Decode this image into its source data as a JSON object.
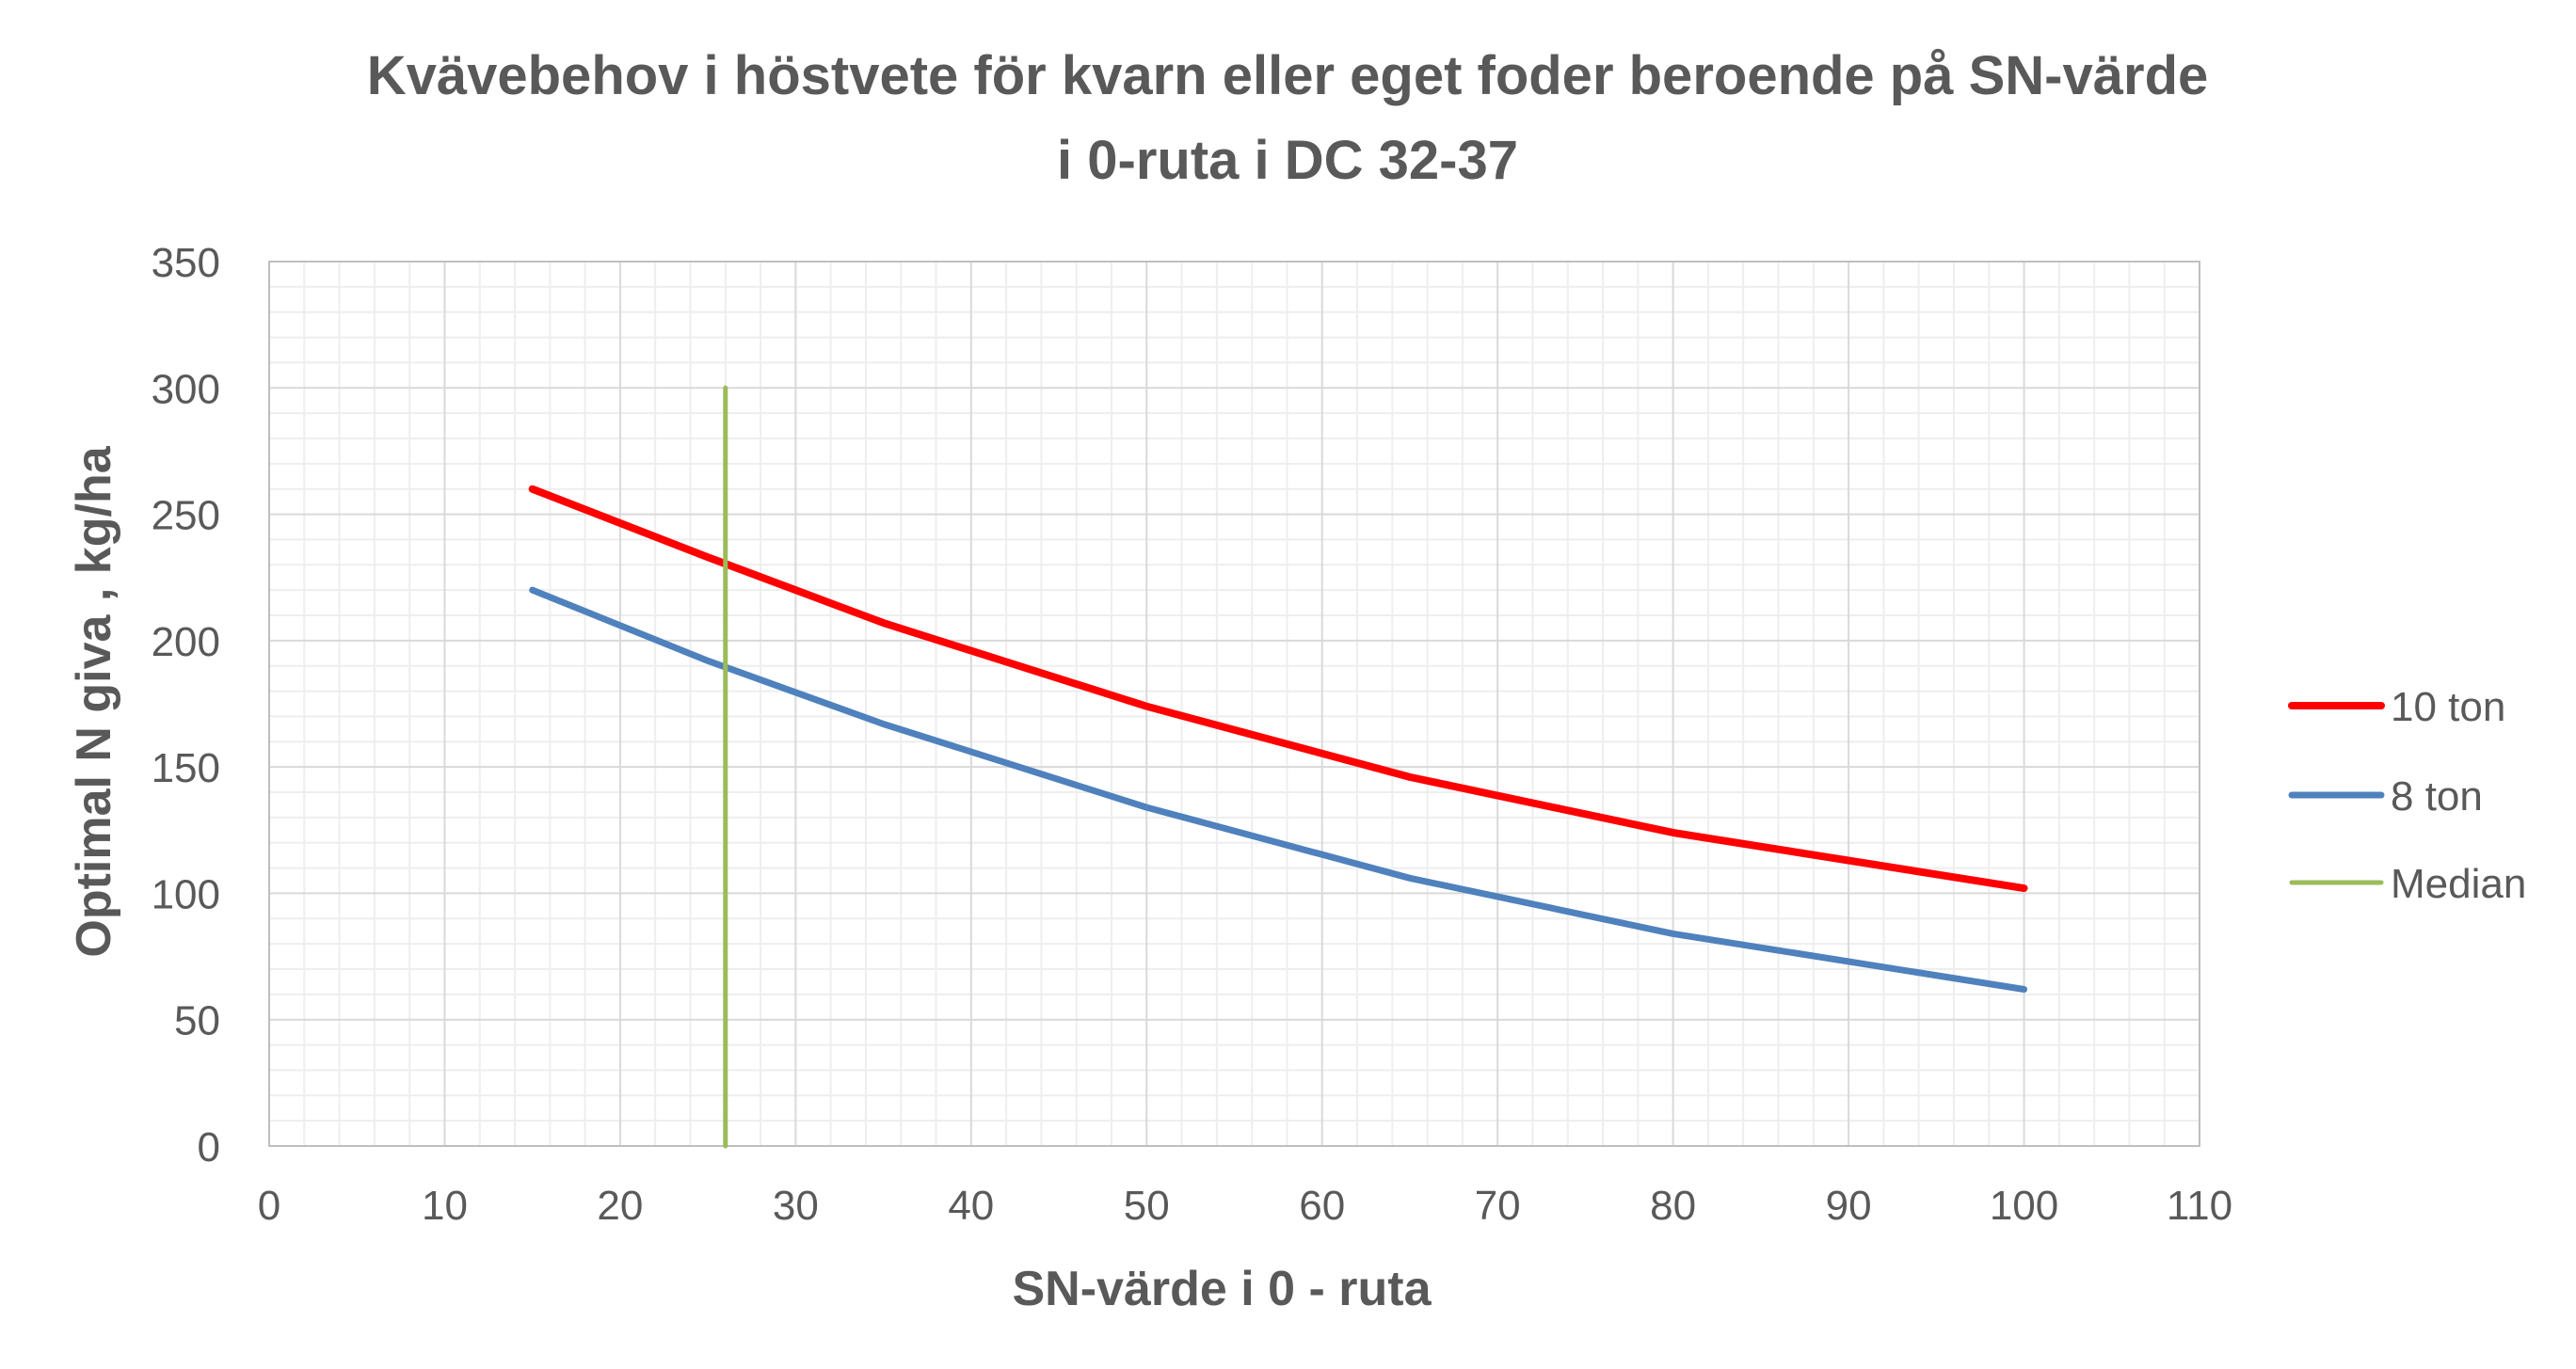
{
  "chart_data": {
    "type": "line",
    "title_lines": [
      "Kvävebehov i höstvete för kvarn eller eget foder beroende på SN-värde",
      "i 0-ruta i DC 32-37"
    ],
    "xlabel": "SN-värde i 0 - ruta",
    "ylabel": "Optimal N giva , kg/ha",
    "xlim": [
      0,
      110
    ],
    "ylim": [
      0,
      350
    ],
    "x_ticks": [
      0,
      10,
      20,
      30,
      40,
      50,
      60,
      70,
      80,
      90,
      100,
      110
    ],
    "y_ticks": [
      0,
      50,
      100,
      150,
      200,
      250,
      300,
      350
    ],
    "grid": true,
    "legend_position": "right",
    "series": [
      {
        "name": "10 ton",
        "color": "#ff0000",
        "x": [
          15,
          25,
          35,
          50,
          65,
          80,
          100
        ],
        "y": [
          260,
          233,
          207,
          174,
          146,
          124,
          102
        ]
      },
      {
        "name": "8 ton",
        "color": "#4f81bd",
        "x": [
          15,
          25,
          35,
          50,
          65,
          80,
          100
        ],
        "y": [
          220,
          192,
          167,
          134,
          106,
          84,
          62
        ]
      },
      {
        "name": "Median",
        "color": "#9bbb59",
        "x": [
          26,
          26
        ],
        "y": [
          0,
          300
        ]
      }
    ]
  }
}
